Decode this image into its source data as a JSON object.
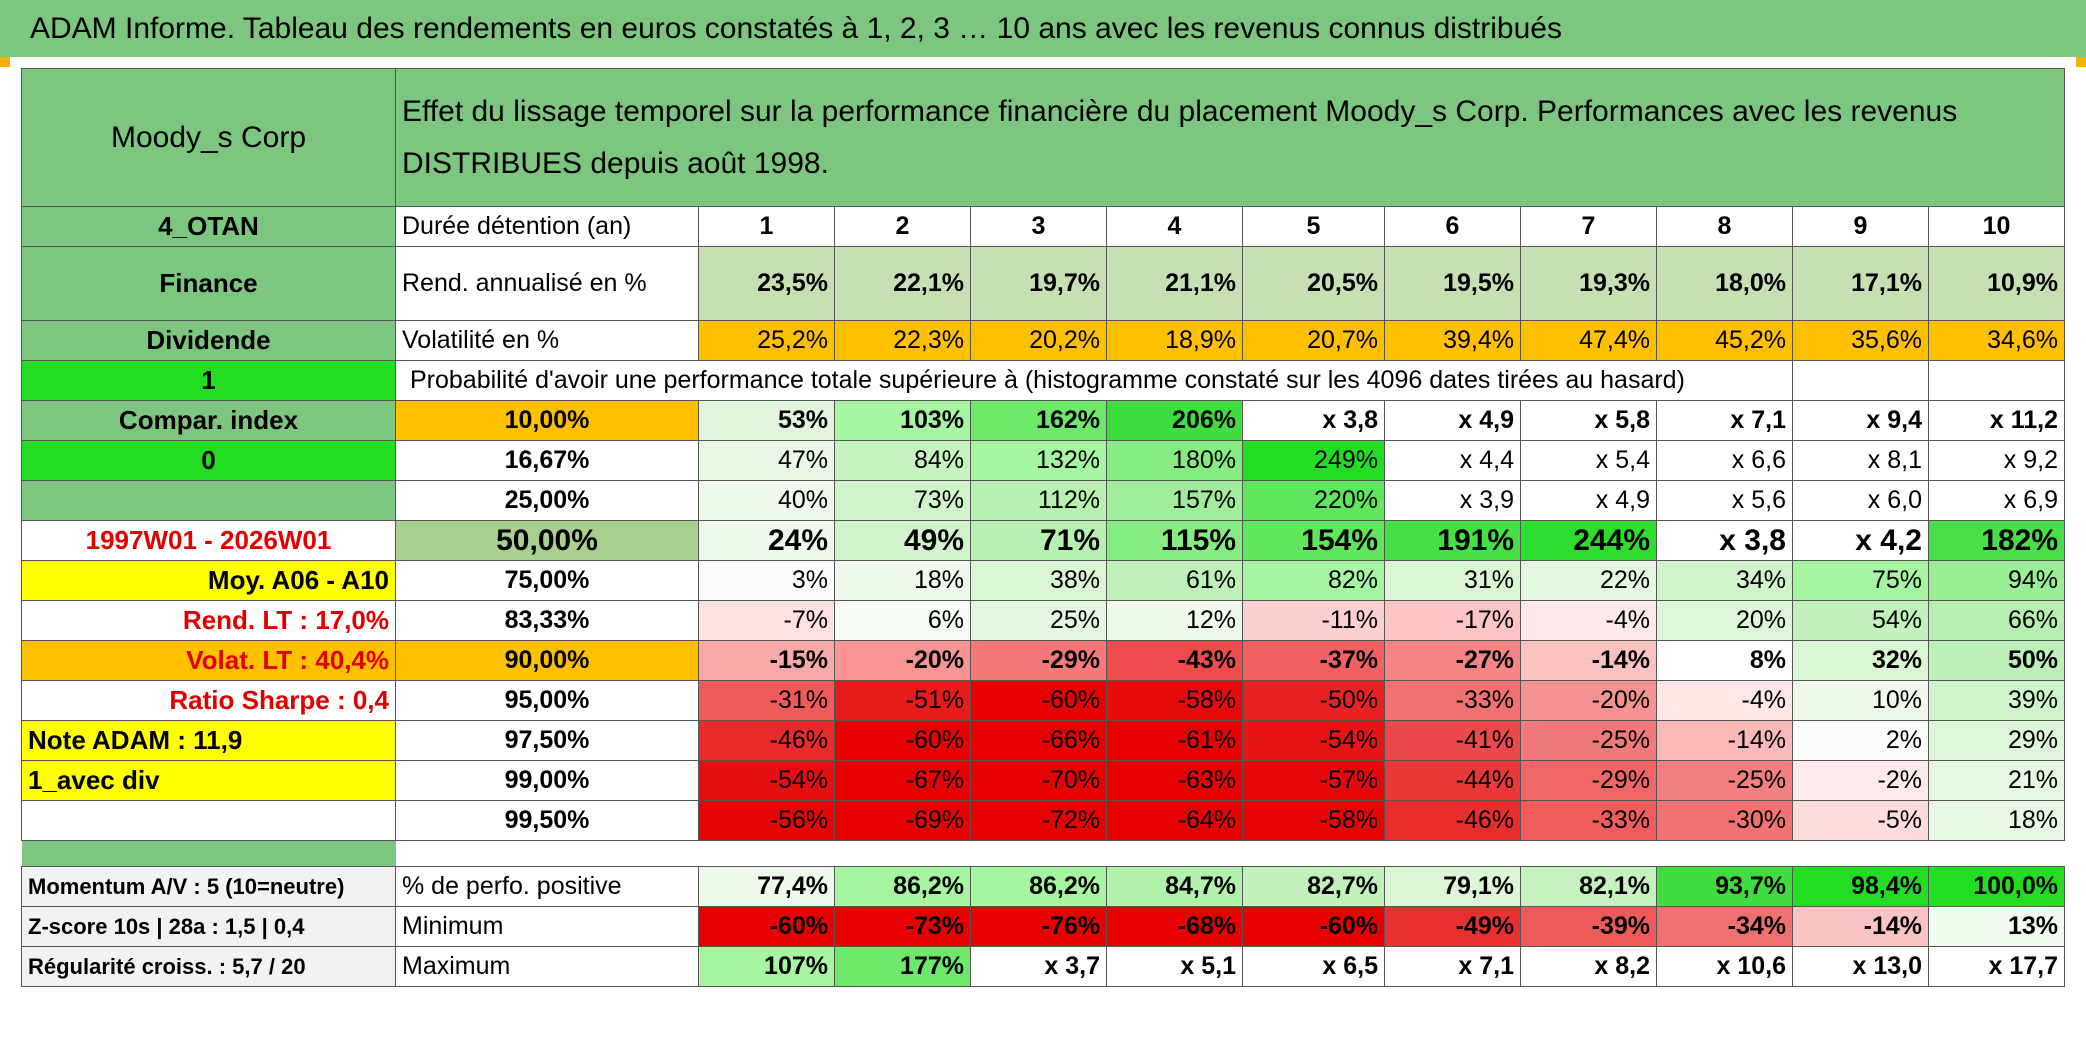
{
  "banner": {
    "title": "ADAM Informe. Tableau des rendements en euros constatés à 1, 2, 3 … 10 ans avec les revenus connus distribués"
  },
  "header": {
    "company": "Moody_s Corp",
    "description": "Effet du lissage temporel sur la performance financière du placement Moody_s Corp. Performances avec les revenus DISTRIBUES depuis août 1998."
  },
  "side": {
    "code": "4_OTAN",
    "sector": "Finance",
    "type": "Dividende",
    "flag1": "1",
    "compar_index": "Compar. index",
    "flag2": "0",
    "period": "1997W01 - 2026W01",
    "moy": "Moy. A06 - A10",
    "rend_lt": "Rend. LT :    17,0%",
    "volat_lt": "Volat. LT :    40,4%",
    "sharpe": "Ratio Sharpe :    0,4",
    "note": "Note ADAM : 11,9",
    "avec_div": "1_avec div",
    "momentum": "Momentum A/V : 5 (10=neutre)",
    "zscore": "Z-score 10s | 28a : 1,5 | 0,4",
    "regularite": "Régularité croiss. : 5,7 / 20"
  },
  "labels": {
    "duree": "Durée détention (an)",
    "rend": "Rend. annualisé en %",
    "vol": "Volatilité en %",
    "proba": "Probabilité d'avoir une performance totale supérieure à (histogramme constaté sur les 4096 dates tirées au hasard)",
    "perf_pos": "% de perfo. positive",
    "minimum": "Minimum",
    "maximum": "Maximum"
  },
  "years": [
    "1",
    "2",
    "3",
    "4",
    "5",
    "6",
    "7",
    "8",
    "9",
    "10"
  ],
  "rend": [
    "23,5%",
    "22,1%",
    "19,7%",
    "21,1%",
    "20,5%",
    "19,5%",
    "19,3%",
    "18,0%",
    "17,1%",
    "10,9%"
  ],
  "vol": [
    "25,2%",
    "22,3%",
    "20,2%",
    "18,9%",
    "20,7%",
    "39,4%",
    "47,4%",
    "45,2%",
    "35,6%",
    "34,6%"
  ],
  "prob_rows": [
    {
      "level": "10,00%",
      "values": [
        "53%",
        "103%",
        "162%",
        "206%",
        "x 3,8",
        "x 4,9",
        "x 5,8",
        "x 7,1",
        "x 9,4",
        "x 11,2"
      ]
    },
    {
      "level": "16,67%",
      "values": [
        "47%",
        "84%",
        "132%",
        "180%",
        "249%",
        "x 4,4",
        "x 5,4",
        "x 6,6",
        "x 8,1",
        "x 9,2"
      ]
    },
    {
      "level": "25,00%",
      "values": [
        "40%",
        "73%",
        "112%",
        "157%",
        "220%",
        "x 3,9",
        "x 4,9",
        "x 5,6",
        "x 6,0",
        "x 6,9"
      ]
    },
    {
      "level": "50,00%",
      "values": [
        "24%",
        "49%",
        "71%",
        "115%",
        "154%",
        "191%",
        "244%",
        "x 3,8",
        "x 4,2",
        "182%"
      ]
    },
    {
      "level": "75,00%",
      "values": [
        "3%",
        "18%",
        "38%",
        "61%",
        "82%",
        "31%",
        "22%",
        "34%",
        "75%",
        "94%"
      ]
    },
    {
      "level": "83,33%",
      "values": [
        "-7%",
        "6%",
        "25%",
        "12%",
        "-11%",
        "-17%",
        "-4%",
        "20%",
        "54%",
        "66%"
      ]
    },
    {
      "level": "90,00%",
      "values": [
        "-15%",
        "-20%",
        "-29%",
        "-43%",
        "-37%",
        "-27%",
        "-14%",
        "8%",
        "32%",
        "50%"
      ]
    },
    {
      "level": "95,00%",
      "values": [
        "-31%",
        "-51%",
        "-60%",
        "-58%",
        "-50%",
        "-33%",
        "-20%",
        "-4%",
        "10%",
        "39%"
      ]
    },
    {
      "level": "97,50%",
      "values": [
        "-46%",
        "-60%",
        "-66%",
        "-61%",
        "-54%",
        "-41%",
        "-25%",
        "-14%",
        "2%",
        "29%"
      ]
    },
    {
      "level": "99,00%",
      "values": [
        "-54%",
        "-67%",
        "-70%",
        "-63%",
        "-57%",
        "-44%",
        "-29%",
        "-25%",
        "-2%",
        "21%"
      ]
    },
    {
      "level": "99,50%",
      "values": [
        "-56%",
        "-69%",
        "-72%",
        "-64%",
        "-58%",
        "-46%",
        "-33%",
        "-30%",
        "-5%",
        "18%"
      ]
    }
  ],
  "perf_pos": [
    "77,4%",
    "86,2%",
    "86,2%",
    "84,7%",
    "82,7%",
    "79,1%",
    "82,1%",
    "93,7%",
    "98,4%",
    "100,0%"
  ],
  "minimum": [
    "-60%",
    "-73%",
    "-76%",
    "-68%",
    "-60%",
    "-49%",
    "-39%",
    "-34%",
    "-14%",
    "13%"
  ],
  "maximum": [
    "107%",
    "177%",
    "x 3,7",
    "x 5,1",
    "x 6,5",
    "x 7,1",
    "x 8,2",
    "x 10,6",
    "x 13,0",
    "x 17,7"
  ]
}
